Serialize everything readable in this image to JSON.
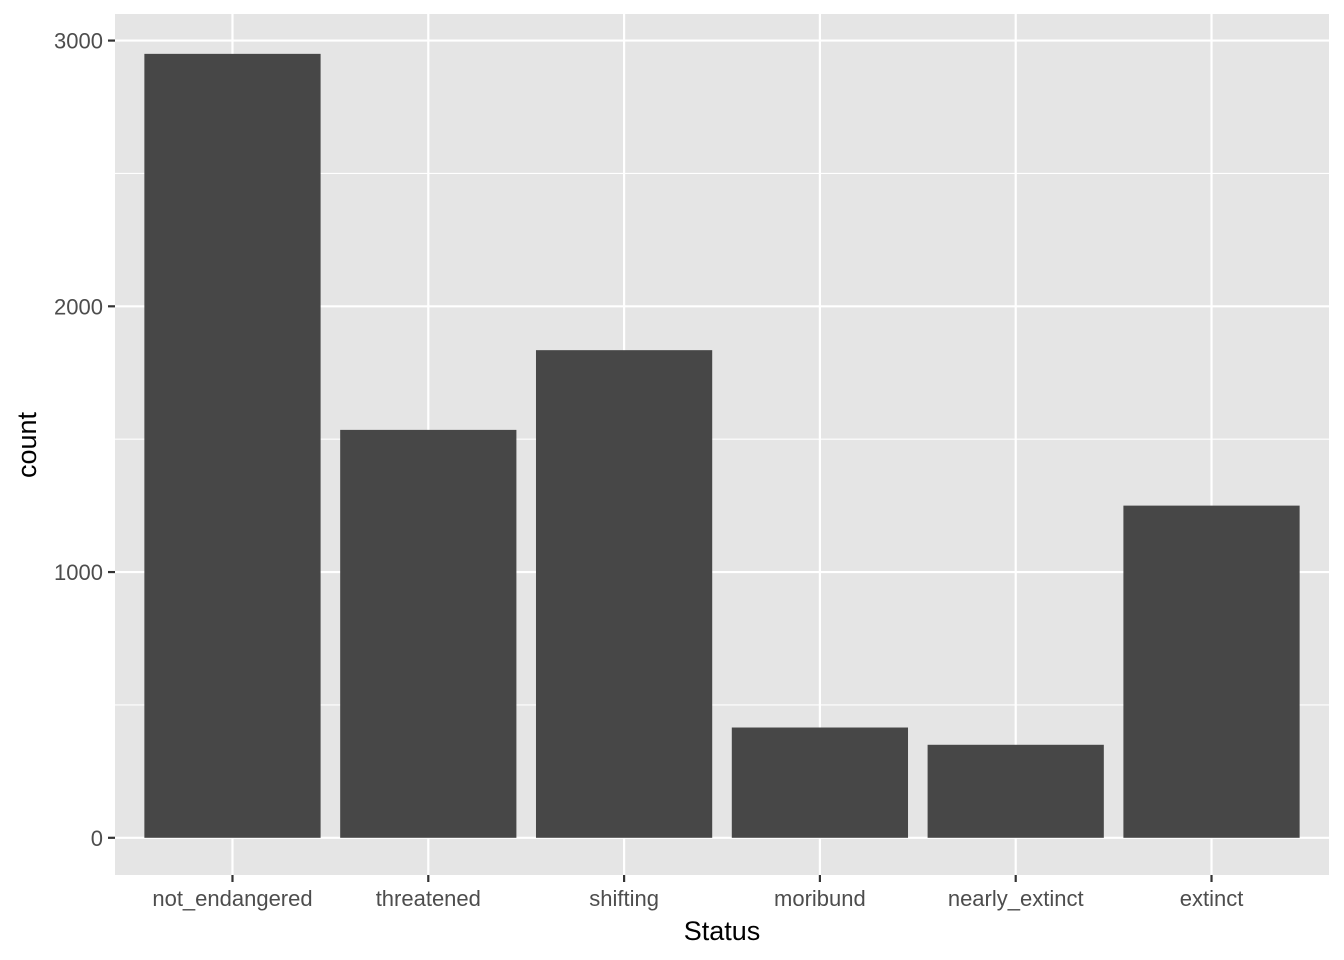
{
  "chart_data": {
    "type": "bar",
    "categories": [
      "not_endangered",
      "threatened",
      "shifting",
      "moribund",
      "nearly_extinct",
      "extinct"
    ],
    "values": [
      2950,
      1535,
      1835,
      415,
      350,
      1250
    ],
    "title": "",
    "xlabel": "Status",
    "ylabel": "count",
    "ylim": [
      -140,
      3100
    ],
    "yticks": [
      0,
      1000,
      2000,
      3000
    ],
    "grid": true,
    "legend": "none",
    "colors": {
      "bar": "#474747",
      "panel": "#e5e5e5",
      "grid": "#ffffff"
    }
  }
}
